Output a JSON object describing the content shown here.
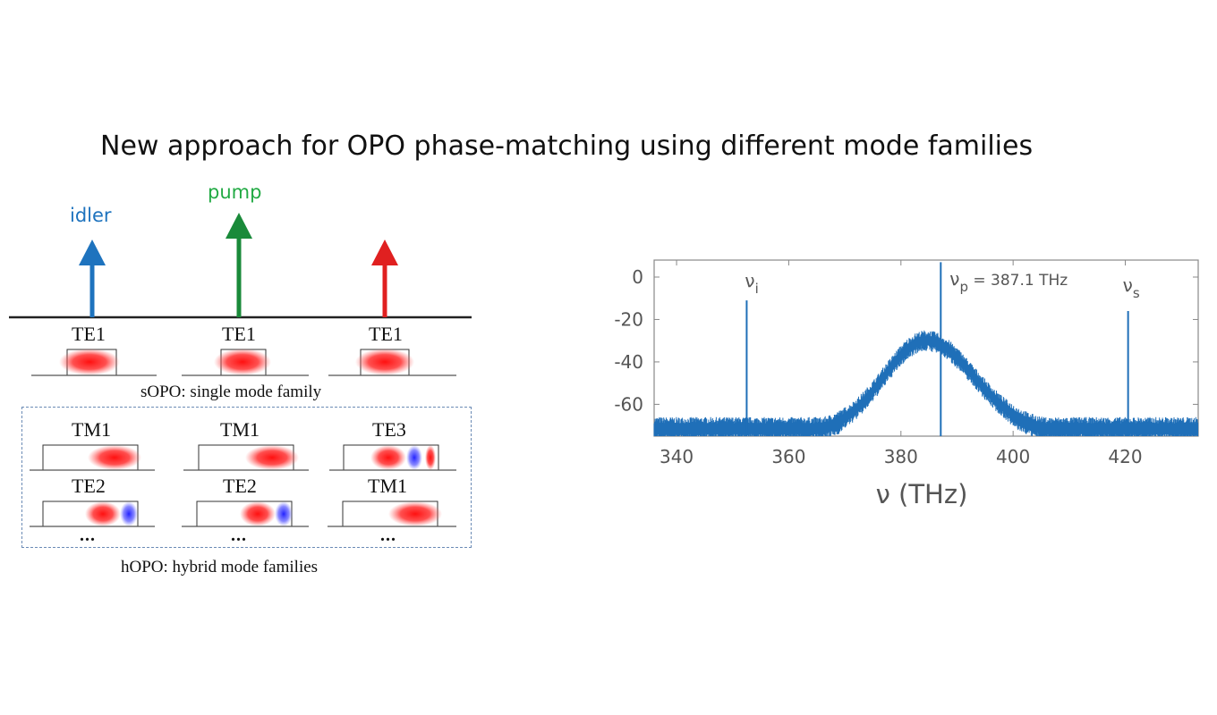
{
  "title": "New approach for OPO phase-matching using different mode families",
  "arrows": {
    "idler_label": "idler",
    "pump_label": "pump",
    "colors": {
      "idler": "#1e73be",
      "pump": "#1a8a3a",
      "signal": "#e02020"
    }
  },
  "sopo": {
    "modes": [
      "TE1",
      "TE1",
      "TE1"
    ],
    "caption": "sOPO: single mode family"
  },
  "hopo": {
    "row1": [
      "TM1",
      "TM1",
      "TE3"
    ],
    "row2": [
      "TE2",
      "TE2",
      "TM1"
    ],
    "ellipsis": "...",
    "caption": "hOPO: hybrid mode families"
  },
  "chart_data": {
    "type": "line",
    "xlabel": "ν (THz)",
    "ylabel": "",
    "xlim": [
      336,
      433
    ],
    "ylim": [
      -75,
      8
    ],
    "xticks": [
      340,
      360,
      380,
      400,
      420
    ],
    "yticks": [
      0,
      -20,
      -40,
      -60
    ],
    "color": "#1f6fb8",
    "peaks": [
      {
        "x": 352.5,
        "y": -11,
        "label_main": "ν",
        "label_sub": "i",
        "label_suffix": ""
      },
      {
        "x": 387.1,
        "y": 7,
        "label_main": "ν",
        "label_sub": "p",
        "label_suffix": " = 387.1 THz"
      },
      {
        "x": 420.5,
        "y": -16,
        "label_main": "ν",
        "label_sub": "s",
        "label_suffix": ""
      }
    ],
    "envelope": {
      "center": 384.5,
      "peak": -28,
      "noise_floor": -71
    }
  }
}
